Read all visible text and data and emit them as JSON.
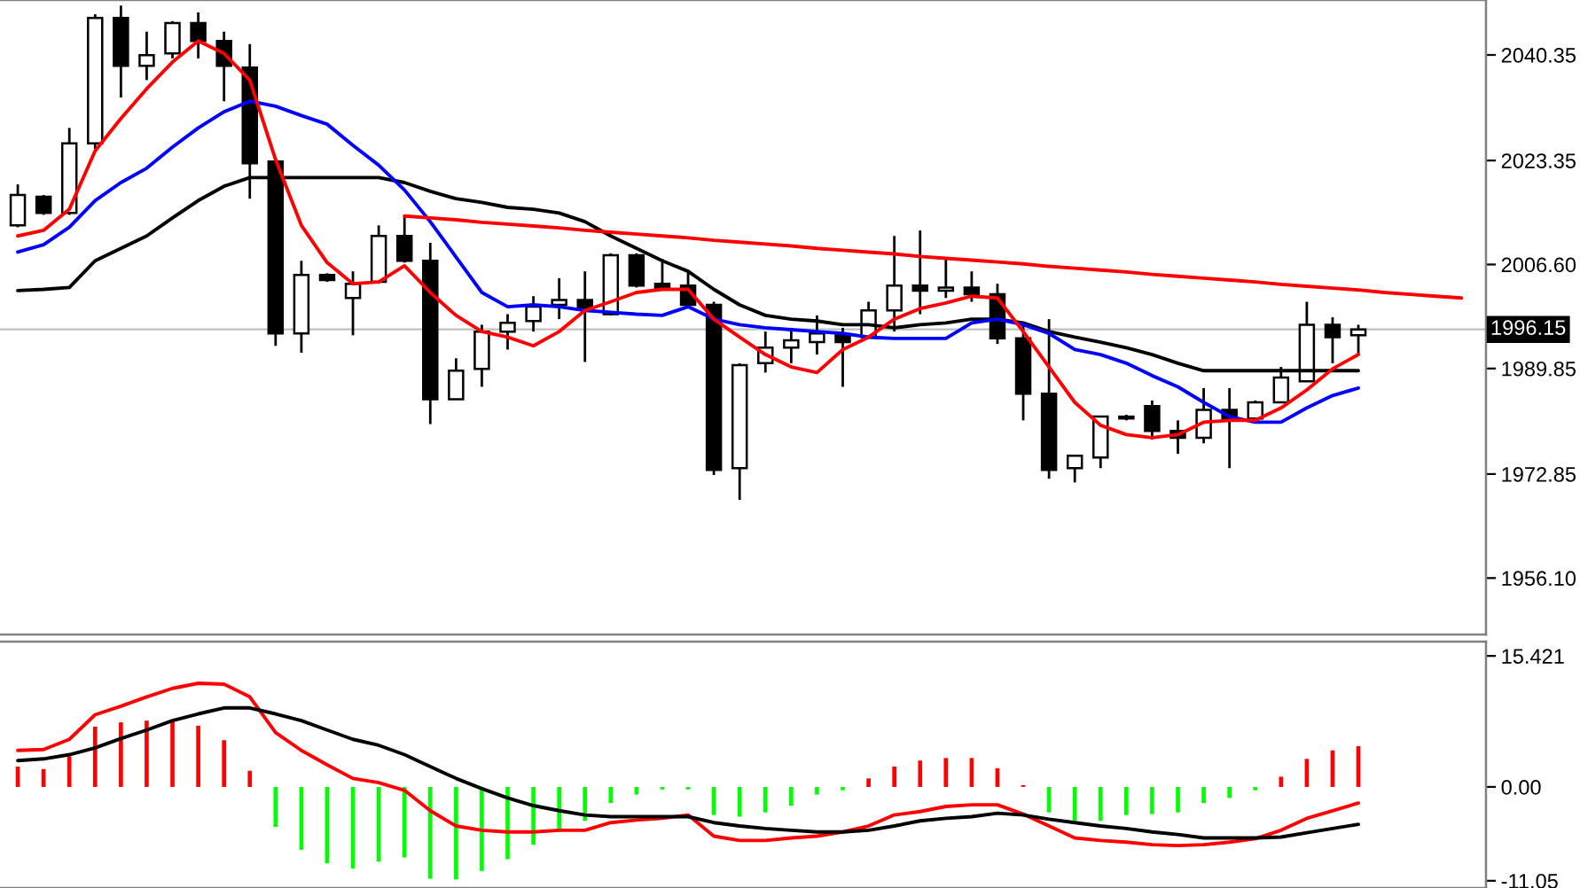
{
  "chart_data": [
    {
      "type": "candlestick",
      "categories": [
        null,
        null,
        null,
        null,
        null,
        null,
        null,
        null,
        null,
        null,
        null,
        null,
        null,
        null,
        null,
        null,
        null,
        null,
        null,
        null,
        null,
        null,
        null,
        null,
        null,
        null,
        null,
        null,
        null,
        null,
        null,
        null,
        null,
        null,
        null,
        null,
        null,
        null,
        null,
        null,
        null,
        null,
        null,
        null,
        null,
        null,
        null,
        null,
        null,
        null,
        null,
        null,
        null,
        null,
        null,
        null,
        null
      ],
      "ohlc": [
        [
          2012.9,
          2019.5,
          2012.6,
          2017.8
        ],
        [
          2017.5,
          2017.8,
          2014.6,
          2014.9
        ],
        [
          2014.9,
          2028.6,
          2014.6,
          2026.1
        ],
        [
          2026.1,
          2046.9,
          2025.2,
          2046.3
        ],
        [
          2046.3,
          2048.3,
          2033.5,
          2038.6
        ],
        [
          2038.6,
          2044.1,
          2036.3,
          2040.3
        ],
        [
          2040.6,
          2045.8,
          2039.8,
          2045.5
        ],
        [
          2045.5,
          2047.2,
          2039.8,
          2042.6
        ],
        [
          2042.6,
          2044.1,
          2032.9,
          2038.6
        ],
        [
          2038.3,
          2042.1,
          2017.2,
          2022.9
        ],
        [
          2023.2,
          2023.2,
          1993.5,
          1995.5
        ],
        [
          1995.5,
          2007.2,
          1992.4,
          2004.9
        ],
        [
          2004.9,
          2005.2,
          2003.8,
          2004.1
        ],
        [
          2001.2,
          2005.5,
          1995.2,
          2003.5
        ],
        [
          2003.8,
          2012.9,
          2003.5,
          2011.2
        ],
        [
          2011.2,
          2014.4,
          2006.9,
          2007.2
        ],
        [
          2007.2,
          2010.1,
          1980.9,
          1984.9
        ],
        [
          1984.9,
          1991.5,
          1984.9,
          1989.5
        ],
        [
          1989.8,
          1996.9,
          1986.9,
          1995.8
        ],
        [
          1995.8,
          1998.6,
          1992.9,
          1997.2
        ],
        [
          1997.5,
          2001.5,
          1995.8,
          1999.8
        ],
        [
          2000.1,
          2004.4,
          1997.8,
          2000.9
        ],
        [
          2000.9,
          2005.5,
          1990.9,
          1999.5
        ],
        [
          1998.6,
          2008.4,
          1998.4,
          2008.1
        ],
        [
          2008.1,
          2008.4,
          2002.9,
          2003.2
        ],
        [
          2003.5,
          2007.5,
          2002.6,
          2002.6
        ],
        [
          2003.2,
          2005.5,
          1999.8,
          2000.1
        ],
        [
          2000.1,
          2000.6,
          1972.7,
          1973.5
        ],
        [
          1973.8,
          1990.7,
          1968.7,
          1990.4
        ],
        [
          1990.7,
          1995.8,
          1989.2,
          1993.2
        ],
        [
          1993.2,
          1996.4,
          1990.7,
          1994.4
        ],
        [
          1994.1,
          1998.4,
          1992.1,
          1995.5
        ],
        [
          1995.2,
          1996.4,
          1986.9,
          1994.1
        ],
        [
          1994.9,
          2000.6,
          1994.9,
          1999.2
        ],
        [
          1999.2,
          2011.2,
          1995.8,
          2003.2
        ],
        [
          2003.2,
          2012.1,
          1998.6,
          2002.4
        ],
        [
          2002.4,
          2007.8,
          2001.2,
          2002.9
        ],
        [
          2002.9,
          2005.5,
          2000.6,
          2001.8
        ],
        [
          2001.8,
          2003.5,
          1993.8,
          1994.7
        ],
        [
          1994.7,
          1997.2,
          1981.5,
          1985.8
        ],
        [
          1985.8,
          1997.8,
          1972.1,
          1973.5
        ],
        [
          1973.8,
          1975.8,
          1971.5,
          1975.8
        ],
        [
          1975.5,
          1982.1,
          1973.8,
          1982.1
        ],
        [
          1982.1,
          1982.4,
          1981.5,
          1981.8
        ],
        [
          1983.8,
          1984.7,
          1978.4,
          1979.8
        ],
        [
          1979.8,
          1981.5,
          1976.1,
          1978.7
        ],
        [
          1978.7,
          1986.7,
          1977.8,
          1983.2
        ],
        [
          1983.2,
          1986.7,
          1973.8,
          1981.5
        ],
        [
          1981.8,
          1984.7,
          1981.8,
          1984.4
        ],
        [
          1984.4,
          1990.1,
          1984.4,
          1988.4
        ],
        [
          1987.8,
          2000.6,
          1987.8,
          1996.9
        ],
        [
          1996.9,
          1998.1,
          1990.7,
          1994.9
        ],
        [
          1995.2,
          1996.9,
          1992.1,
          1996.15
        ],
        null,
        null,
        null,
        null
      ],
      "series": [
        {
          "type": "line",
          "color": "#000000",
          "values": [
            2002.4,
            2002.6,
            2002.9,
            2007.2,
            2009.2,
            2011.2,
            2014.1,
            2016.9,
            2019.2,
            2020.6,
            2020.6,
            2020.6,
            2020.6,
            2020.6,
            2020.6,
            2019.8,
            2018.4,
            2017.2,
            2016.6,
            2015.8,
            2015.5,
            2014.9,
            2013.5,
            2011.2,
            2009.2,
            2007.2,
            2005.5,
            2002.6,
            2000.1,
            1998.4,
            1997.8,
            1997.5,
            1996.9,
            1996.9,
            1996.4,
            1996.9,
            1997.2,
            1997.8,
            1997.8,
            1997.2,
            1995.8,
            1994.9,
            1994.1,
            1993.2,
            1992.1,
            1990.7,
            1989.5,
            1989.5,
            1989.5,
            1989.5,
            1989.5,
            1989.5,
            1989.5,
            null,
            null,
            null,
            null
          ]
        },
        {
          "type": "line",
          "color": "#0000ff",
          "values": [
            2008.6,
            2009.8,
            2012.6,
            2016.9,
            2019.8,
            2022.1,
            2025.5,
            2028.6,
            2031.2,
            2032.9,
            2032.1,
            2030.6,
            2029.2,
            2025.8,
            2022.6,
            2018.6,
            2013.5,
            2007.8,
            2002.1,
            1999.8,
            2000.1,
            1999.8,
            1999.2,
            1998.9,
            1998.6,
            1998.4,
            1999.8,
            1997.8,
            1996.9,
            1996.4,
            1996.1,
            1995.8,
            1995.5,
            1994.9,
            1994.7,
            1994.7,
            1994.7,
            1997.2,
            1997.8,
            1996.9,
            1995.5,
            1992.9,
            1992.1,
            1990.7,
            1988.7,
            1986.9,
            1984.4,
            1982.1,
            1981.2,
            1981.2,
            1983.5,
            1985.5,
            1986.7,
            null,
            null,
            null,
            null
          ]
        },
        {
          "type": "line",
          "color": "#ff0000",
          "values": [
            2011.2,
            2012.1,
            2015.5,
            2024.9,
            2030.1,
            2034.9,
            2039.2,
            2042.6,
            2040.6,
            2036.3,
            2023.5,
            2012.9,
            2006.9,
            2003.5,
            2003.8,
            2006.4,
            2002.1,
            1998.4,
            1995.8,
            1994.9,
            1993.5,
            1995.8,
            1999.2,
            2000.6,
            2002.1,
            2002.6,
            2002.6,
            1997.8,
            1994.9,
            1992.1,
            1990.1,
            1989.2,
            1992.9,
            1994.9,
            1997.8,
            1999.5,
            2000.4,
            2001.5,
            2001.2,
            1995.8,
            1990.1,
            1984.4,
            1980.7,
            1979.2,
            1978.7,
            1979.2,
            1981.2,
            1981.5,
            1981.5,
            1983.5,
            1986.4,
            1989.8,
            1992.1,
            null,
            null,
            null,
            null
          ]
        },
        {
          "type": "line",
          "color": "#ff0000",
          "values": [
            null,
            null,
            null,
            null,
            null,
            null,
            null,
            null,
            null,
            null,
            null,
            null,
            null,
            null,
            null,
            2014.4,
            2014.1,
            2013.8,
            2013.4,
            2013.1,
            2012.8,
            2012.5,
            2012.1,
            2011.8,
            2011.5,
            2011.2,
            2010.9,
            2010.5,
            2010.2,
            2009.9,
            2009.6,
            2009.2,
            2008.9,
            2008.6,
            2008.3,
            2007.9,
            2007.6,
            2007.3,
            2007.0,
            2006.7,
            2006.3,
            2006.0,
            2005.7,
            2005.4,
            2005.0,
            2004.7,
            2004.4,
            2004.1,
            2003.8,
            2003.4,
            2003.1,
            2002.8,
            2002.5,
            2002.1,
            2001.8,
            2001.5,
            2001.2
          ]
        }
      ],
      "ylim": [
        1947.0,
        2049.2
      ],
      "yticks": [
        2040.35,
        2023.35,
        {
          "value": 2006.6,
          "label": "2006.60"
        },
        1989.85,
        1972.85,
        {
          "value": 1956.1,
          "label": "1956.10"
        }
      ],
      "ref_lines": [
        {
          "axis": "y",
          "value": 1996.15,
          "label": "1996.15",
          "color": "#c0c0c0"
        }
      ],
      "tick_labels": "y"
    },
    {
      "type": "bar",
      "categories": [
        null,
        null,
        null,
        null,
        null,
        null,
        null,
        null,
        null,
        null,
        null,
        null,
        null,
        null,
        null,
        null,
        null,
        null,
        null,
        null,
        null,
        null,
        null,
        null,
        null,
        null,
        null,
        null,
        null,
        null,
        null,
        null,
        null,
        null,
        null,
        null,
        null,
        null,
        null,
        null,
        null,
        null,
        null,
        null,
        null,
        null,
        null,
        null,
        null,
        null,
        null,
        null,
        null,
        null,
        null,
        null,
        null
      ],
      "series": [
        {
          "type": "bar",
          "values": [
            2.4,
            2.1,
            3.6,
            7.1,
            7.6,
            7.8,
            7.8,
            7.2,
            5.5,
            1.9,
            -4.7,
            -7.4,
            -9.0,
            -9.6,
            -8.8,
            -8.3,
            -10.8,
            -10.9,
            -9.9,
            -8.5,
            -6.8,
            -5.1,
            -4.0,
            -1.9,
            -0.9,
            -0.3,
            -0.3,
            -3.3,
            -3.5,
            -3.0,
            -2.2,
            -0.9,
            -0.4,
            1.0,
            2.4,
            3.1,
            3.4,
            3.4,
            2.2,
            0.2,
            -3.0,
            -4.0,
            -4.0,
            -3.3,
            -3.2,
            -3.0,
            -1.9,
            -1.3,
            -0.4,
            1.2,
            3.3,
            4.3,
            4.8,
            null,
            null,
            null,
            null
          ],
          "colors": [
            "#ff0000",
            "#ff0000",
            "#ff0000",
            "#ff0000",
            "#ff0000",
            "#ff0000",
            "#ff0000",
            "#ff0000",
            "#ff0000",
            "#ff0000",
            "#00ff00",
            "#00ff00",
            "#00ff00",
            "#00ff00",
            "#00ff00",
            "#00ff00",
            "#00ff00",
            "#00ff00",
            "#00ff00",
            "#00ff00",
            "#00ff00",
            "#00ff00",
            "#00ff00",
            "#00ff00",
            "#00ff00",
            "#00ff00",
            "#00ff00",
            "#00ff00",
            "#00ff00",
            "#00ff00",
            "#00ff00",
            "#00ff00",
            "#00ff00",
            "#ff0000",
            "#ff0000",
            "#ff0000",
            "#ff0000",
            "#ff0000",
            "#ff0000",
            "#ff0000",
            "#00ff00",
            "#00ff00",
            "#00ff00",
            "#00ff00",
            "#00ff00",
            "#00ff00",
            "#00ff00",
            "#00ff00",
            "#00ff00",
            "#ff0000",
            "#ff0000",
            "#ff0000",
            "#ff0000",
            null,
            null,
            null,
            null
          ]
        },
        {
          "type": "line",
          "color": "#ff0000",
          "values": [
            4.3,
            4.4,
            5.6,
            8.5,
            9.5,
            10.6,
            11.6,
            12.2,
            12.1,
            10.6,
            6.4,
            4.3,
            2.6,
            1.0,
            0.5,
            -0.4,
            -2.8,
            -4.6,
            -5.1,
            -5.3,
            -5.3,
            -5.1,
            -5.1,
            -4.2,
            -3.9,
            -3.7,
            -3.3,
            -5.8,
            -6.3,
            -6.3,
            -6.0,
            -5.8,
            -5.3,
            -4.6,
            -3.3,
            -2.9,
            -2.3,
            -2.1,
            -2.1,
            -3.2,
            -4.6,
            -6.0,
            -6.3,
            -6.5,
            -6.8,
            -6.9,
            -6.8,
            -6.5,
            -6.1,
            -5.1,
            -3.7,
            -2.8,
            -1.9,
            null,
            null,
            null,
            null
          ]
        },
        {
          "type": "line",
          "color": "#000000",
          "values": [
            3.1,
            3.3,
            3.8,
            4.6,
            5.7,
            6.7,
            7.8,
            8.6,
            9.3,
            9.3,
            8.6,
            7.8,
            6.7,
            5.6,
            4.9,
            3.8,
            2.4,
            1.0,
            -0.2,
            -1.3,
            -2.2,
            -2.8,
            -3.3,
            -3.5,
            -3.5,
            -3.5,
            -3.5,
            -4.2,
            -4.6,
            -4.9,
            -5.1,
            -5.3,
            -5.3,
            -5.1,
            -4.6,
            -4.0,
            -3.7,
            -3.5,
            -3.1,
            -3.3,
            -3.8,
            -4.2,
            -4.6,
            -4.9,
            -5.3,
            -5.6,
            -6.0,
            -6.0,
            -6.0,
            -5.9,
            -5.4,
            -4.9,
            -4.4,
            null,
            null,
            null,
            null
          ]
        }
      ],
      "ylim": [
        -11.9,
        17.1
      ],
      "yticks": [
        15.421,
        {
          "value": 0,
          "label": "0.00"
        },
        -11.05
      ],
      "tick_labels": "y"
    }
  ]
}
